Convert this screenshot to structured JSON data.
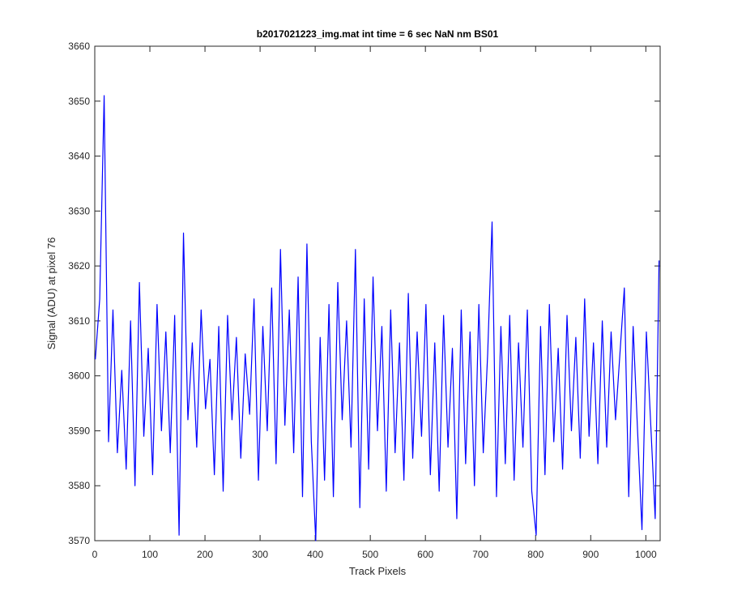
{
  "chart_data": {
    "type": "line",
    "title": "b2017021223_img.mat int time = 6 sec  NaN nm BS01",
    "xlabel": "Track Pixels",
    "ylabel": "Signal (ADU) at pixel 76",
    "xlim": [
      0,
      1026
    ],
    "ylim": [
      3570,
      3660
    ],
    "xticks": [
      0,
      100,
      200,
      300,
      400,
      500,
      600,
      700,
      800,
      900,
      1000
    ],
    "yticks": [
      3570,
      3580,
      3590,
      3600,
      3610,
      3620,
      3630,
      3640,
      3650,
      3660
    ],
    "grid": false,
    "x": [
      1,
      9,
      17,
      25,
      33,
      41,
      49,
      57,
      65,
      73,
      81,
      89,
      97,
      105,
      113,
      121,
      129,
      137,
      145,
      153,
      161,
      169,
      177,
      185,
      193,
      201,
      209,
      217,
      225,
      233,
      241,
      249,
      257,
      265,
      273,
      281,
      289,
      297,
      305,
      313,
      321,
      329,
      337,
      345,
      353,
      361,
      369,
      377,
      385,
      393,
      401,
      409,
      417,
      425,
      433,
      441,
      449,
      457,
      465,
      473,
      481,
      489,
      497,
      505,
      513,
      521,
      529,
      537,
      545,
      553,
      561,
      569,
      577,
      585,
      593,
      601,
      609,
      617,
      625,
      633,
      641,
      649,
      657,
      665,
      673,
      681,
      689,
      697,
      705,
      713,
      721,
      729,
      737,
      745,
      753,
      761,
      769,
      777,
      785,
      793,
      801,
      809,
      817,
      825,
      833,
      841,
      849,
      857,
      865,
      873,
      881,
      889,
      897,
      905,
      913,
      921,
      929,
      937,
      945,
      953,
      961,
      969,
      977,
      985,
      993,
      1001,
      1009,
      1017,
      1024
    ],
    "series": [
      {
        "color": "#0000ff",
        "values": [
          3603,
          3614,
          3651,
          3588,
          3612,
          3586,
          3601,
          3583,
          3610,
          3580,
          3617,
          3589,
          3605,
          3582,
          3613,
          3590,
          3608,
          3586,
          3611,
          3571,
          3626,
          3592,
          3606,
          3587,
          3612,
          3594,
          3603,
          3582,
          3609,
          3579,
          3611,
          3592,
          3607,
          3585,
          3604,
          3593,
          3614,
          3581,
          3609,
          3590,
          3616,
          3584,
          3623,
          3591,
          3612,
          3586,
          3618,
          3578,
          3624,
          3588,
          3570,
          3607,
          3581,
          3613,
          3578,
          3617,
          3592,
          3610,
          3587,
          3623,
          3576,
          3614,
          3583,
          3618,
          3590,
          3609,
          3579,
          3612,
          3586,
          3606,
          3581,
          3615,
          3585,
          3608,
          3589,
          3613,
          3582,
          3606,
          3579,
          3611,
          3587,
          3605,
          3574,
          3612,
          3584,
          3608,
          3580,
          3613,
          3586,
          3604,
          3628,
          3578,
          3609,
          3584,
          3611,
          3581,
          3606,
          3587,
          3612,
          3579,
          3571,
          3609,
          3582,
          3613,
          3588,
          3605,
          3583,
          3611,
          3590,
          3607,
          3585,
          3614,
          3589,
          3606,
          3584,
          3610,
          3587,
          3608,
          3592,
          3604,
          3616,
          3578,
          3609,
          3590,
          3572,
          3608,
          3591,
          3574,
          3621
        ]
      }
    ]
  }
}
